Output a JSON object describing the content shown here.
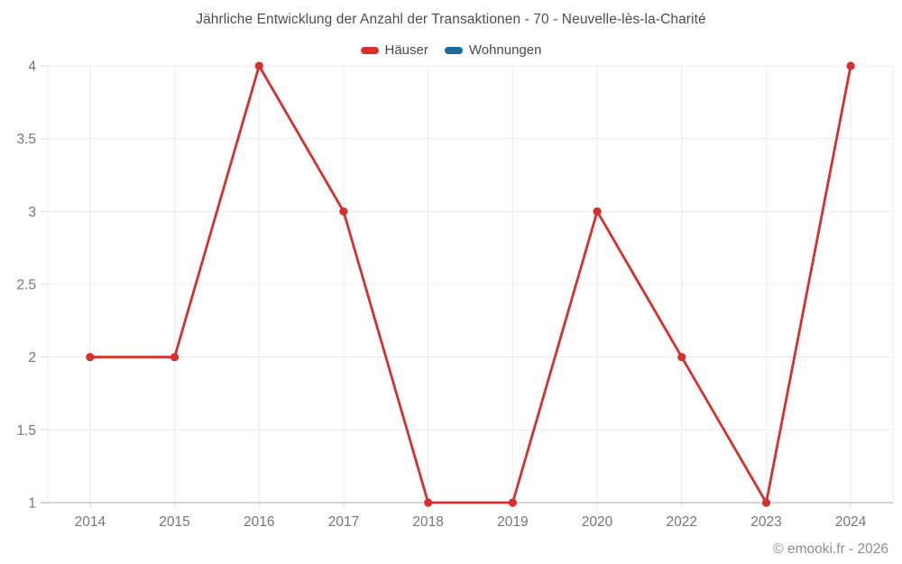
{
  "footer": "© emooki.fr - 2026",
  "chart_data": {
    "type": "line",
    "title": "Jährliche Entwicklung der Anzahl der Transaktionen - 70 - Neuvelle-lès-la-Charité",
    "categories": [
      "2014",
      "2015",
      "2016",
      "2017",
      "2018",
      "2019",
      "2020",
      "2022",
      "2023",
      "2024"
    ],
    "series": [
      {
        "name": "Häuser",
        "color": "#d6302e",
        "values": [
          2,
          2,
          4,
          3,
          1,
          1,
          3,
          2,
          1,
          4
        ]
      },
      {
        "name": "Wohnungen",
        "color": "#1a6c9e",
        "values": []
      }
    ],
    "xlabel": "",
    "ylabel": "",
    "ylim": [
      1,
      4
    ],
    "yticks": [
      1,
      1.5,
      2,
      2.5,
      3,
      3.5,
      4
    ],
    "grid": true,
    "legend_position": "top",
    "colors": {
      "gridline": "#ececec",
      "axis_line": "#ababab",
      "tick": "#dcdcdc",
      "axis_text": "#757575",
      "title_text": "#4d4d4d",
      "legend_text": "#4a4a4a",
      "footer_text": "#8c8c8c"
    }
  }
}
